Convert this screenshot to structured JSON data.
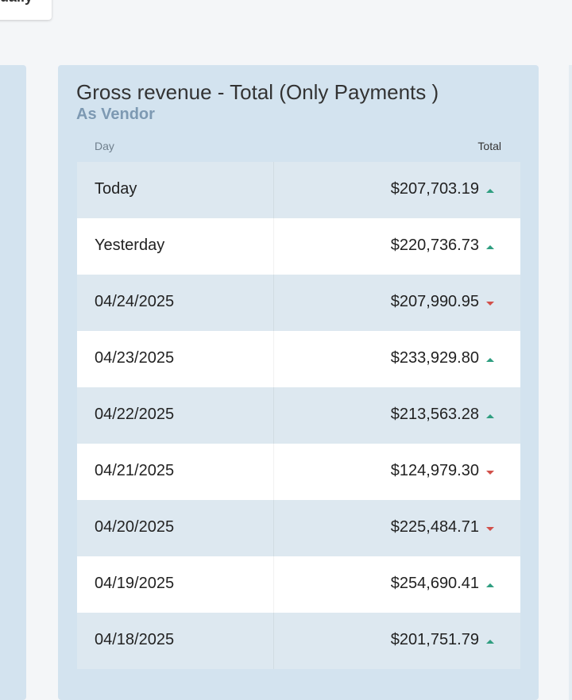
{
  "top_card": {
    "label": "ually"
  },
  "widget": {
    "title": "Gross revenue - Total (Only Payments )",
    "subtitle": "As Vendor",
    "table": {
      "columns": [
        "Day",
        "Total"
      ],
      "rows": [
        {
          "day": "Today",
          "total": "$207,703.19",
          "trend": "up"
        },
        {
          "day": "Yesterday",
          "total": "$220,736.73",
          "trend": "up"
        },
        {
          "day": "04/24/2025",
          "total": "$207,990.95",
          "trend": "down"
        },
        {
          "day": "04/23/2025",
          "total": "$233,929.80",
          "trend": "up"
        },
        {
          "day": "04/22/2025",
          "total": "$213,563.28",
          "trend": "up"
        },
        {
          "day": "04/21/2025",
          "total": "$124,979.30",
          "trend": "down"
        },
        {
          "day": "04/20/2025",
          "total": "$225,484.71",
          "trend": "down"
        },
        {
          "day": "04/19/2025",
          "total": "$254,690.41",
          "trend": "up"
        },
        {
          "day": "04/18/2025",
          "total": "$201,751.79",
          "trend": "up"
        }
      ]
    }
  }
}
